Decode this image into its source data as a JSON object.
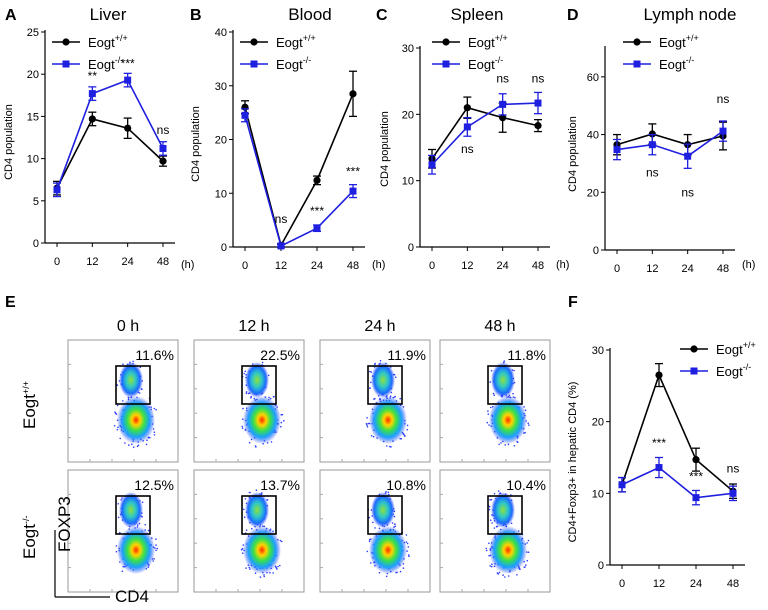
{
  "chart_data": [
    {
      "id": "A",
      "type": "line",
      "panel_letter": "A",
      "title": "Liver",
      "ylabel": "CD4 population",
      "xunit": "(h)",
      "x": [
        0,
        12,
        24,
        48
      ],
      "xticks": [
        "0",
        "12",
        "24",
        "48"
      ],
      "ylim": [
        0,
        25
      ],
      "yticks": [
        0,
        5,
        10,
        15,
        20,
        25
      ],
      "series": [
        {
          "name": "Eogt",
          "sup": "+/+",
          "color": "#000000",
          "marker": "circle",
          "values": [
            6.5,
            14.7,
            13.6,
            9.7
          ],
          "errors": [
            0.8,
            0.8,
            1.2,
            0.6
          ]
        },
        {
          "name": "Eogt",
          "sup": "-/-",
          "color": "#1f1fe0",
          "marker": "square",
          "values": [
            6.3,
            17.7,
            19.3,
            11.2
          ],
          "errors": [
            0.8,
            0.8,
            0.8,
            0.8
          ]
        }
      ],
      "annotations": [
        {
          "x": 12,
          "y": 19.3,
          "text": "**"
        },
        {
          "x": 24,
          "y": 20.8,
          "text": "***"
        },
        {
          "x": 48,
          "y": 12.9,
          "text": "ns"
        }
      ]
    },
    {
      "id": "B",
      "type": "line",
      "panel_letter": "B",
      "title": "Blood",
      "ylabel": "CD4 population",
      "xunit": "(h)",
      "x": [
        0,
        12,
        24,
        48
      ],
      "xticks": [
        "0",
        "12",
        "24",
        "48"
      ],
      "ylim": [
        0,
        40
      ],
      "yticks": [
        0,
        10,
        20,
        30,
        40
      ],
      "series": [
        {
          "name": "Eogt",
          "sup": "+/+",
          "color": "#000000",
          "marker": "circle",
          "values": [
            26,
            0.3,
            12.4,
            28.5
          ],
          "errors": [
            1.2,
            0.3,
            0.8,
            4.2
          ]
        },
        {
          "name": "Eogt",
          "sup": "-/-",
          "color": "#1f1fe0",
          "marker": "square",
          "values": [
            24.5,
            0.2,
            3.5,
            10.4
          ],
          "errors": [
            1.2,
            0.3,
            0.6,
            1.2
          ]
        }
      ],
      "annotations": [
        {
          "x": 12,
          "y": 4.5,
          "text": "ns"
        },
        {
          "x": 24,
          "y": 6.0,
          "text": "***"
        },
        {
          "x": 48,
          "y": 13.3,
          "text": "***"
        }
      ]
    },
    {
      "id": "C",
      "type": "line",
      "panel_letter": "C",
      "title": "Spleen",
      "ylabel": "CD4 population",
      "xunit": "(h)",
      "x": [
        0,
        12,
        24,
        48
      ],
      "xticks": [
        "0",
        "12",
        "24",
        "48"
      ],
      "ylim": [
        0,
        30
      ],
      "yticks": [
        0,
        10,
        20,
        30
      ],
      "series": [
        {
          "name": "Eogt",
          "sup": "+/+",
          "color": "#000000",
          "marker": "circle",
          "values": [
            13.3,
            21,
            19.5,
            18.3
          ],
          "errors": [
            1.4,
            1.6,
            2.2,
            0.9
          ]
        },
        {
          "name": "Eogt",
          "sup": "-/-",
          "color": "#1f1fe0",
          "marker": "square",
          "values": [
            12.4,
            18.1,
            21.5,
            21.7
          ],
          "errors": [
            1.4,
            1.4,
            1.6,
            1.6
          ]
        }
      ],
      "annotations": [
        {
          "x": 12,
          "y": 14.2,
          "text": "ns"
        },
        {
          "x": 24,
          "y": 24.8,
          "text": "ns"
        },
        {
          "x": 48,
          "y": 24.8,
          "text": "ns"
        }
      ]
    },
    {
      "id": "D",
      "type": "line",
      "panel_letter": "D",
      "title": "Lymph node",
      "ylabel": "CD4 population",
      "xunit": "(h)",
      "x": [
        0,
        12,
        24,
        48
      ],
      "xticks": [
        "0",
        "12",
        "24",
        "48"
      ],
      "ylim": [
        0,
        70
      ],
      "yticks": [
        0,
        20,
        40,
        60
      ],
      "series": [
        {
          "name": "Eogt",
          "sup": "+/+",
          "color": "#000000",
          "marker": "circle",
          "values": [
            36.5,
            40.2,
            36.5,
            39.5
          ],
          "errors": [
            3.5,
            3.5,
            3.5,
            4.8
          ]
        },
        {
          "name": "Eogt",
          "sup": "-/-",
          "color": "#1f1fe0",
          "marker": "square",
          "values": [
            34.8,
            36.5,
            32.5,
            41.2
          ],
          "errors": [
            3.5,
            3.5,
            4.2,
            3.5
          ]
        }
      ],
      "annotations": [
        {
          "x": 12,
          "y": 25.5,
          "text": "ns"
        },
        {
          "x": 24,
          "y": 18.5,
          "text": "ns"
        },
        {
          "x": 48,
          "y": 51,
          "text": "ns"
        }
      ]
    },
    {
      "id": "F",
      "type": "line",
      "panel_letter": "F",
      "title": "",
      "ylabel": "CD4+Foxp3+ in hepatic CD4 (%)",
      "xunit": "",
      "x": [
        0,
        12,
        24,
        48
      ],
      "xticks": [
        "0",
        "12",
        "24",
        "48"
      ],
      "ylim": [
        0,
        30
      ],
      "yticks": [
        0,
        10,
        20,
        30
      ],
      "series": [
        {
          "name": "Eogt",
          "sup": "+/+",
          "color": "#000000",
          "marker": "circle",
          "values": [
            11.2,
            26.5,
            14.7,
            10.3
          ],
          "errors": [
            1.0,
            1.6,
            1.6,
            1.0
          ]
        },
        {
          "name": "Eogt",
          "sup": "-/-",
          "color": "#1f1fe0",
          "marker": "square",
          "values": [
            11.2,
            13.6,
            9.4,
            10.0
          ],
          "errors": [
            1.0,
            1.4,
            1.0,
            1.0
          ]
        }
      ],
      "annotations": [
        {
          "x": 12,
          "y": 16.5,
          "text": "***"
        },
        {
          "x": 24,
          "y": 11.8,
          "text": "***"
        },
        {
          "x": 48,
          "y": 12.9,
          "text": "ns"
        }
      ]
    }
  ],
  "flow": {
    "panel_letter": "E",
    "timepoints": [
      "0 h",
      "12 h",
      "24 h",
      "48 h"
    ],
    "rows": [
      {
        "label": "Eogt",
        "sup": "+/+",
        "percentages": [
          "11.6%",
          "22.5%",
          "11.9%",
          "11.8%"
        ]
      },
      {
        "label": "Eogt",
        "sup": "-/-",
        "percentages": [
          "12.5%",
          "13.7%",
          "10.8%",
          "10.4%"
        ]
      }
    ],
    "y_axis": "FOXP3",
    "x_axis": "CD4"
  }
}
